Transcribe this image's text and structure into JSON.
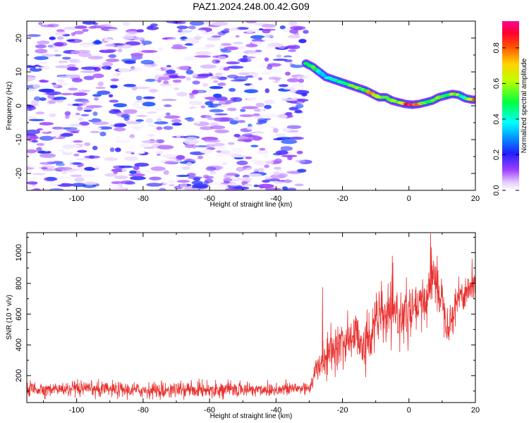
{
  "title": "PAZ1.2024.248.00.42.G09",
  "colors": {
    "snr_line": "#e8312f",
    "spectrogram_palette": [
      "#ffffff",
      "#e9d8ff",
      "#b58cff",
      "#7a1ff0",
      "#1f1fff",
      "#00c8ff",
      "#00ff5a",
      "#f0ff00",
      "#ff8a00",
      "#ff0030",
      "#ff00a0"
    ]
  },
  "chart_data": [
    {
      "type": "heatmap",
      "name": "spectrogram",
      "xlabel": "Height of straight line (km)",
      "ylabel": "Frequency (Hz)",
      "xlim": [
        -115,
        20
      ],
      "ylim": [
        -25,
        25
      ],
      "xticks": [
        -100,
        -80,
        -60,
        -40,
        -20,
        0,
        20
      ],
      "yticks": [
        -20,
        -10,
        0,
        10,
        20
      ],
      "noise_region_x": [
        -115,
        -30
      ],
      "noise_amplitude_range": [
        0.0,
        0.25
      ],
      "ridge": {
        "x": [
          -31,
          -29,
          -27,
          -25,
          -22,
          -19,
          -16,
          -13,
          -11,
          -9,
          -7,
          -5,
          -3,
          -1,
          1,
          3,
          5,
          7,
          9,
          11,
          13,
          15,
          17,
          19,
          20
        ],
        "y": [
          12.5,
          11.5,
          10,
          8.5,
          7.5,
          6.5,
          5.5,
          4.5,
          3.5,
          2.5,
          2.5,
          1.5,
          1.0,
          0.5,
          0.3,
          0.5,
          1.0,
          1.5,
          2.5,
          3.0,
          3.5,
          3.2,
          2.2,
          1.8,
          1.8
        ],
        "amplitude": [
          0.45,
          0.5,
          0.4,
          0.35,
          0.42,
          0.48,
          0.52,
          0.58,
          0.75,
          0.6,
          0.55,
          0.62,
          0.55,
          0.9,
          0.95,
          0.85,
          0.5,
          0.55,
          0.6,
          0.5,
          0.62,
          0.58,
          0.4,
          0.7,
          0.85
        ]
      },
      "colorbar": {
        "label": "Normalized spectral amplitude",
        "range": [
          0,
          0.95
        ],
        "ticks": [
          0.0,
          0.2,
          0.4,
          0.6,
          0.8
        ]
      }
    },
    {
      "type": "line",
      "name": "snr",
      "xlabel": "Height of straight line (km)",
      "ylabel": "SNR (10 * v/v)",
      "xlim": [
        -115,
        20
      ],
      "ylim": [
        25,
        1130
      ],
      "xticks": [
        -100,
        -80,
        -60,
        -40,
        -20,
        0,
        20
      ],
      "yticks": [
        200,
        400,
        600,
        800,
        1000
      ],
      "trend": {
        "x": [
          -115,
          -100,
          -80,
          -60,
          -40,
          -30,
          -28,
          -25,
          -20,
          -15,
          -13,
          -10,
          -5,
          0,
          5,
          7,
          10,
          12,
          15,
          20
        ],
        "y": [
          115,
          110,
          105,
          110,
          110,
          120,
          230,
          320,
          420,
          470,
          380,
          570,
          600,
          590,
          680,
          860,
          700,
          520,
          720,
          790
        ]
      },
      "noise_spread": {
        "x": [
          -115,
          -30,
          -25,
          -15,
          -5,
          5,
          20
        ],
        "y": [
          45,
          45,
          110,
          170,
          160,
          150,
          90
        ]
      },
      "spikes": [
        {
          "x": -26,
          "y": 775
        },
        {
          "x": -13,
          "y": 190
        },
        {
          "x": -5,
          "y": 980
        },
        {
          "x": 6.5,
          "y": 1125
        },
        {
          "x": 8.5,
          "y": 980
        },
        {
          "x": 12,
          "y": 450
        },
        {
          "x": 19,
          "y": 960
        }
      ]
    }
  ]
}
